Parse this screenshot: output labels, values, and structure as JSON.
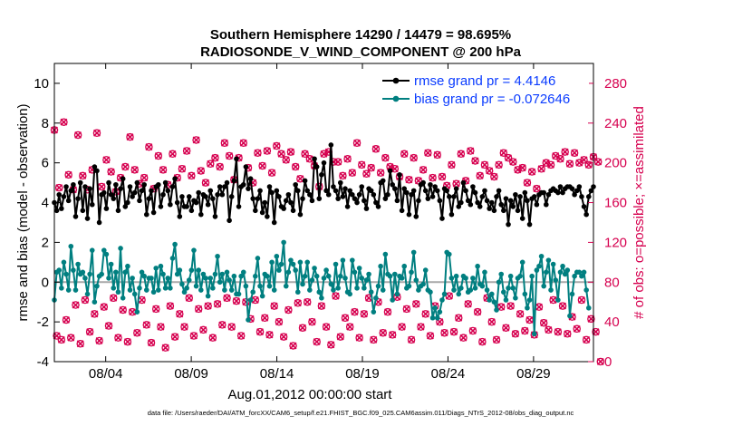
{
  "chart_data": {
    "type": "line",
    "title": "Southern Hemisphere 14290 / 14479 = 98.695%",
    "subtitle": "RADIOSONDE_V_WIND_COMPONENT @ 200 hPa",
    "xlabel": "Aug.01,2012 00:00:00 start",
    "ylabel": "rmse and bias (model - observation)",
    "y2label": "# of obs: o=possible; ×=assimilated",
    "footnote": "data file: /Users/raeder/DAI/ATM_forcXX/CAM6_setup/f.e21.FHIST_BGC.f09_025.CAM6assim.011/Diags_NTrS_2012-08/obs_diag_output.nc",
    "xlim": [
      1,
      32.5
    ],
    "xticks": [
      4,
      9,
      14,
      19,
      24,
      29
    ],
    "xticklabels": [
      "08/04",
      "08/09",
      "08/14",
      "08/19",
      "08/24",
      "08/29"
    ],
    "ylim": [
      -4,
      11
    ],
    "yticks": [
      -4,
      -2,
      0,
      2,
      4,
      6,
      8,
      10
    ],
    "y2lim": [
      0,
      300
    ],
    "y2ticks": [
      0,
      40,
      80,
      120,
      160,
      200,
      240,
      280
    ],
    "series": [
      {
        "name": "rmse grand pr = 4.4146",
        "color": "#000000",
        "values": [
          4.0,
          3.6,
          4.4,
          3.7,
          4.3,
          4.8,
          4.1,
          4.6,
          4.9,
          3.3,
          4.2,
          5.0,
          3.6,
          4.8,
          3.2,
          4.7,
          3.9,
          5.8,
          5.6,
          3.0,
          4.4,
          4.5,
          3.7,
          5.0,
          4.4,
          4.2,
          4.9,
          3.6,
          4.7,
          5.2,
          3.8,
          4.0,
          4.8,
          4.3,
          4.5,
          5.0,
          4.1,
          4.6,
          4.9,
          3.4,
          4.2,
          4.6,
          3.5,
          4.8,
          4.9,
          3.8,
          4.4,
          5.0,
          4.6,
          3.9,
          4.8,
          5.2,
          4.0,
          3.3,
          4.3,
          3.8,
          3.8,
          4.3,
          3.6,
          4.1,
          4.0,
          4.5,
          3.4,
          4.4,
          4.3,
          3.9,
          4.6,
          4.2,
          3.3,
          4.4,
          4.8,
          4.4,
          4.8,
          5.0,
          3.1,
          4.3,
          5.1,
          6.2,
          3.8,
          4.8,
          4.9,
          5.8,
          4.7,
          5.2,
          4.2,
          3.6,
          4.2,
          4.6,
          3.5,
          4.0,
          3.3,
          4.8,
          4.5,
          3.0,
          4.6,
          4.3,
          3.8,
          3.7,
          4.1,
          4.4,
          4.0,
          3.6,
          4.9,
          4.6,
          3.4,
          4.2,
          5.1,
          4.6,
          4.4,
          4.1,
          6.2,
          5.8,
          4.2,
          5.4,
          6.0,
          4.6,
          4.4,
          6.9,
          4.8,
          4.6,
          4.2,
          5.0,
          4.3,
          4.7,
          3.8,
          4.6,
          4.4,
          4.2,
          4.0,
          4.4,
          4.8,
          4.1,
          3.7,
          4.7,
          4.6,
          4.4,
          4.0,
          3.8,
          5.0,
          5.1,
          4.2,
          4.4,
          5.6,
          4.9,
          4.7,
          4.1,
          5.4,
          3.6,
          4.7,
          4.5,
          3.4,
          4.4,
          4.6,
          3.3,
          4.1,
          4.9,
          5.0,
          4.6,
          4.2,
          4.9,
          4.3,
          4.8,
          4.6,
          4.1,
          3.2,
          4.7,
          4.6,
          4.3,
          3.4,
          4.3,
          4.7,
          3.8,
          4.0,
          5.0,
          4.6,
          4.1,
          3.9,
          4.8,
          4.5,
          4.0,
          3.8,
          4.3,
          4.6,
          4.1,
          3.7,
          4.0,
          3.6,
          4.3,
          4.6,
          3.9,
          3.6,
          4.2,
          2.9,
          4.1,
          3.8,
          4.4,
          3.6,
          4.3,
          3.2,
          4.5,
          4.1,
          2.9,
          4.2,
          4.3,
          3.9,
          4.4,
          4.5,
          4.5,
          3.9,
          4.4,
          4.6,
          4.7,
          4.6,
          4.5,
          4.8,
          4.5,
          4.7,
          4.8,
          4.8,
          4.7,
          4.4,
          4.6,
          4.8,
          4.3,
          3.8,
          3.4,
          4.3,
          4.6,
          4.8
        ]
      },
      {
        "name": "bias grand pr = -0.072646",
        "color": "#007f80",
        "values": [
          -0.9,
          0.5,
          0.6,
          -0.3,
          1.0,
          0.4,
          -0.4,
          1.8,
          0.6,
          -0.4,
          0.9,
          0.4,
          0.5,
          0.2,
          -0.6,
          0.4,
          1.6,
          -1.0,
          -0.2,
          0.3,
          0.4,
          1.6,
          1.4,
          0.2,
          0.9,
          -0.3,
          0.5,
          -0.5,
          1.7,
          -0.8,
          0.5,
          0.8,
          -0.4,
          0.2,
          -0.6,
          -1.5,
          -0.3,
          0.5,
          0.3,
          -0.4,
          0.2,
          0.2,
          -0.5,
          0.7,
          -0.4,
          0.8,
          0.4,
          -0.3,
          0.2,
          -0.3,
          1.2,
          1.9,
          0.4,
          0.6,
          -0.1,
          -0.5,
          -0.3,
          0.1,
          0.6,
          1.6,
          -0.2,
          0.6,
          -0.4,
          0.4,
          0.2,
          -0.7,
          0.2,
          -0.3,
          0.4,
          1.3,
          0.0,
          0.4,
          -0.4,
          0.5,
          0.1,
          -0.4,
          0.3,
          -0.6,
          -0.6,
          0.3,
          0.5,
          -0.2,
          -1.9,
          -0.9,
          -0.5,
          0.3,
          1.2,
          -0.2,
          -0.7,
          0.4,
          0.3,
          -0.2,
          1.0,
          -0.4,
          1.3,
          0.6,
          0.9,
          2.0,
          -0.2,
          0.5,
          1.1,
          0.9,
          0.6,
          -0.5,
          1.0,
          -0.1,
          0.3,
          1.0,
          -0.4,
          0.1,
          0.7,
          0.3,
          -0.5,
          -0.8,
          0.2,
          0.6,
          0.3,
          -0.1,
          -0.4,
          0.9,
          -0.3,
          0.3,
          1.1,
          0.2,
          -0.5,
          -0.6,
          1.1,
          0.5,
          -0.3,
          0.7,
          0.2,
          -0.3,
          0.1,
          0.4,
          -0.5,
          -1.5,
          -0.8,
          -0.2,
          0.8,
          -0.4,
          1.4,
          0.4,
          0.3,
          -0.9,
          0.4,
          -0.6,
          0.3,
          0.2,
          0.8,
          -0.3,
          -0.2,
          0.5,
          1.5,
          0.1,
          -0.4,
          -0.2,
          -0.1,
          0.6,
          -0.4,
          -0.5,
          -1.8,
          -1.3,
          -1.8,
          -1.5,
          -0.9,
          -0.6,
          1.5,
          1.4,
          0.2,
          -0.4,
          0.3,
          -0.6,
          -0.3,
          0.3,
          0.2,
          -0.5,
          -0.4,
          0.2,
          -0.3,
          0.8,
          -0.1,
          -0.2,
          0.5,
          -0.4,
          -0.9,
          -0.6,
          -1.0,
          -1.4,
          0.0,
          0.4,
          -0.5,
          -0.9,
          -0.3,
          0.3,
          -0.3,
          -0.8,
          0.2,
          0.3,
          1.0,
          -0.6,
          -1.3,
          -0.9,
          0.3,
          -2.6,
          0.6,
          0.8,
          1.3,
          -0.2,
          0.5,
          1.1,
          -0.4,
          0.9,
          0.1,
          -0.9,
          0.5,
          0.8,
          0.4,
          0.6,
          -1.7,
          -0.6,
          0.3,
          0.5,
          0.5,
          0.3,
          0.5,
          -0.4,
          -1.3
        ]
      },
      {
        "name": "# obs possible",
        "color": "#d6004f",
        "axis": "right",
        "values": [
          233,
          26,
          175,
          22,
          241,
          42,
          188,
          24,
          173,
          57,
          228,
          18,
          187,
          62,
          173,
          30,
          193,
          48,
          230,
          21,
          176,
          55,
          203,
          36,
          191,
          64,
          171,
          24,
          185,
          52,
          196,
          20,
          226,
          50,
          193,
          29,
          179,
          62,
          185,
          37,
          216,
          19,
          174,
          53,
          207,
          35,
          193,
          14,
          178,
          56,
          209,
          25,
          185,
          48,
          194,
          35,
          212,
          64,
          187,
          26,
          223,
          53,
          192,
          32,
          180,
          56,
          199,
          24,
          205,
          58,
          196,
          37,
          220,
          64,
          207,
          35,
          183,
          61,
          205,
          26,
          220,
          60,
          195,
          43,
          180,
          62,
          210,
          30,
          197,
          44,
          212,
          27,
          190,
          56,
          217,
          40,
          209,
          25,
          203,
          52,
          211,
          16,
          196,
          59,
          184,
          34,
          209,
          60,
          204,
          40,
          197,
          20,
          176,
          56,
          209,
          35,
          211,
          17,
          201,
          66,
          201,
          25,
          187,
          44,
          204,
          35,
          190,
          50,
          220,
          24,
          198,
          48,
          189,
          64,
          195,
          22,
          214,
          60,
          190,
          29,
          205,
          50,
          196,
          27,
          194,
          65,
          186,
          35,
          209,
          53,
          183,
          22,
          205,
          58,
          182,
          35,
          193,
          48,
          210,
          26,
          185,
          56,
          208,
          40,
          186,
          29,
          177,
          66,
          198,
          30,
          179,
          44,
          209,
          24,
          182,
          58,
          212,
          31,
          202,
          50,
          187,
          20,
          198,
          64,
          192,
          40,
          186,
          22,
          198,
          55,
          210,
          34,
          205,
          56,
          201,
          28,
          193,
          48,
          195,
          31,
          180,
          42,
          191,
          27,
          174,
          55,
          194,
          39,
          200,
          32,
          198,
          62,
          207,
          30,
          204,
          56,
          211,
          28,
          199,
          45,
          210,
          33,
          200,
          62,
          203,
          22,
          198,
          43,
          206,
          30,
          201,
          0
        ]
      },
      {
        "name": "# obs assimilated",
        "color": "#d6004f",
        "axis": "right",
        "values": [
          233,
          26,
          175,
          22,
          241,
          42,
          188,
          24,
          173,
          57,
          228,
          18,
          187,
          62,
          173,
          30,
          193,
          48,
          230,
          21,
          176,
          55,
          203,
          36,
          191,
          64,
          171,
          24,
          185,
          52,
          196,
          20,
          226,
          50,
          193,
          29,
          179,
          62,
          185,
          37,
          216,
          19,
          174,
          53,
          207,
          35,
          193,
          14,
          178,
          56,
          209,
          25,
          185,
          48,
          194,
          35,
          212,
          64,
          187,
          26,
          223,
          53,
          192,
          32,
          180,
          56,
          199,
          24,
          205,
          58,
          196,
          37,
          220,
          64,
          207,
          35,
          183,
          61,
          205,
          26,
          220,
          60,
          195,
          43,
          180,
          62,
          210,
          30,
          197,
          44,
          212,
          27,
          190,
          56,
          217,
          40,
          209,
          25,
          203,
          52,
          211,
          16,
          196,
          59,
          184,
          34,
          209,
          60,
          204,
          40,
          197,
          20,
          176,
          56,
          209,
          35,
          211,
          17,
          201,
          66,
          201,
          25,
          187,
          44,
          204,
          35,
          190,
          50,
          220,
          24,
          198,
          48,
          189,
          64,
          195,
          22,
          214,
          60,
          190,
          29,
          205,
          50,
          196,
          27,
          194,
          65,
          186,
          35,
          209,
          53,
          183,
          22,
          205,
          58,
          182,
          35,
          193,
          48,
          210,
          26,
          185,
          56,
          208,
          40,
          186,
          29,
          177,
          66,
          198,
          30,
          179,
          44,
          209,
          24,
          182,
          58,
          212,
          31,
          202,
          50,
          187,
          20,
          198,
          64,
          192,
          40,
          186,
          22,
          198,
          55,
          210,
          34,
          205,
          56,
          201,
          28,
          193,
          48,
          195,
          31,
          180,
          42,
          191,
          27,
          174,
          55,
          194,
          39,
          200,
          32,
          198,
          62,
          207,
          30,
          204,
          56,
          211,
          28,
          199,
          45,
          210,
          33,
          200,
          62,
          203,
          22,
          198,
          43,
          206,
          30,
          201,
          0
        ]
      }
    ],
    "legend_position": "top-right",
    "grid": false
  },
  "colors": {
    "rmse": "#000000",
    "bias": "#007f80",
    "obs": "#d6004f",
    "legend_text": "#0b3cff",
    "zero_line": "#a9a9a9"
  }
}
